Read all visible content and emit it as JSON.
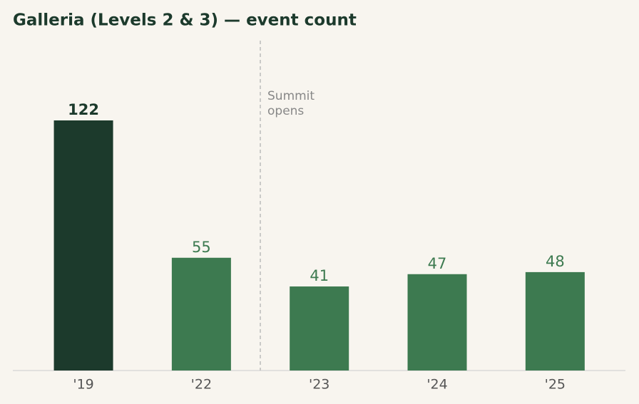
{
  "chart_data": {
    "type": "bar",
    "title": "Galleria (Levels 2 & 3) — event count",
    "categories": [
      "'19",
      "'22",
      "'23",
      "'24",
      "'25"
    ],
    "values": [
      122,
      55,
      41,
      47,
      48
    ],
    "colors": [
      "#1c3a2c",
      "#3d7a50",
      "#3d7a50",
      "#3d7a50",
      "#3d7a50"
    ],
    "highlight_index": 0,
    "annotation": [
      "Summit",
      "opens"
    ]
  }
}
